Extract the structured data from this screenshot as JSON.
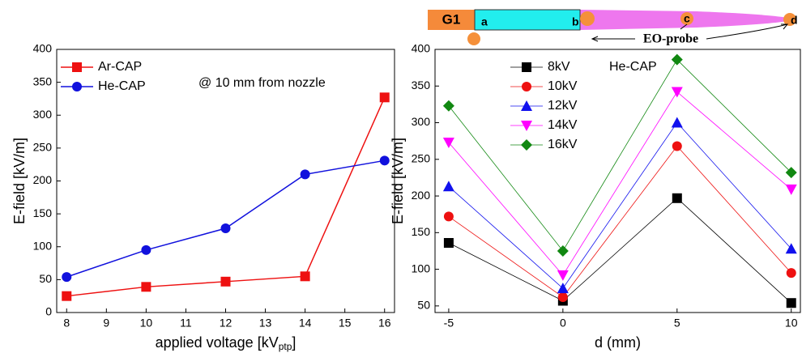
{
  "chart_data": [
    {
      "type": "line",
      "ylabel": "E-field [kV/m]",
      "xlabel": "applied voltage [kV",
      "xlabel_sub": "ptp",
      "xlabel_end": "]",
      "annotation": "@ 10 mm from nozzle",
      "x": [
        8,
        10,
        12,
        14,
        16
      ],
      "xlim": [
        7.75,
        16.25
      ],
      "xticks": [
        8,
        9,
        10,
        11,
        12,
        13,
        14,
        15,
        16
      ],
      "ylim": [
        0,
        400
      ],
      "yticks": [
        0,
        50,
        100,
        150,
        200,
        250,
        300,
        350,
        400
      ],
      "legend": "upper left",
      "series": [
        {
          "name": "Ar-CAP",
          "color": "#ee1111",
          "marker": "square",
          "values": [
            25,
            39,
            47,
            55,
            327
          ]
        },
        {
          "name": "He-CAP",
          "color": "#1111dd",
          "marker": "circle",
          "values": [
            54,
            95,
            128,
            210,
            231
          ]
        }
      ]
    },
    {
      "type": "line",
      "ylabel": "E-field [kV/m]",
      "xlabel": "d (mm)",
      "annotation": "He-CAP",
      "x": [
        -5,
        0,
        5,
        10
      ],
      "xlim": [
        -5.6,
        10.4
      ],
      "xticks": [
        -5,
        0,
        5,
        10
      ],
      "ylim": [
        41,
        400
      ],
      "yticks": [
        50,
        100,
        150,
        200,
        250,
        300,
        350,
        400
      ],
      "legend": "upper left",
      "series": [
        {
          "name": "8kV",
          "color": "#000000",
          "marker": "square",
          "values": [
            136,
            57,
            197,
            54
          ]
        },
        {
          "name": "10kV",
          "color": "#ee1111",
          "marker": "circle",
          "values": [
            172,
            62,
            268,
            95
          ]
        },
        {
          "name": "12kV",
          "color": "#1111ee",
          "marker": "triangle-up",
          "values": [
            213,
            74,
            300,
            128
          ]
        },
        {
          "name": "14kV",
          "color": "#ff00ff",
          "marker": "triangle-down",
          "values": [
            273,
            92,
            342,
            209
          ]
        },
        {
          "name": "16kV",
          "color": "#118811",
          "marker": "diamond",
          "values": [
            323,
            125,
            386,
            232
          ]
        }
      ]
    }
  ],
  "diagram": {
    "g1": "G1",
    "a": "a",
    "b": "b",
    "c": "c",
    "d": "d",
    "probe": "EO-probe"
  }
}
